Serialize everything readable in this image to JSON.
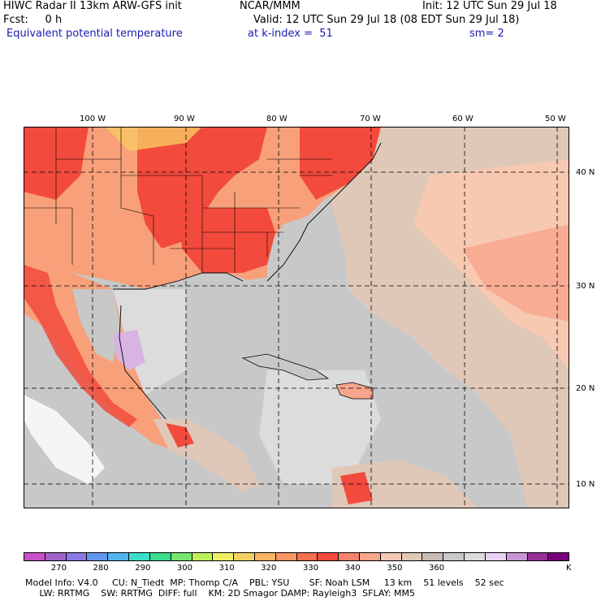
{
  "header": {
    "line1_left": "HIWC Radar II 13km ARW-GFS init",
    "line1_mid": "NCAR/MMM",
    "line1_right": "Init: 12 UTC Sun 29 Jul 18",
    "line2_left": "Fcst:     0 h",
    "line2_right": "Valid: 12 UTC Sun 29 Jul 18 (08 EDT Sun 29 Jul 18)",
    "line3_left": "Equivalent potential temperature",
    "line3_mid": "at k-index =  51",
    "line3_right": "sm= 2"
  },
  "map": {
    "lon_labels": [
      "100 W",
      "90 W",
      "80 W",
      "70 W",
      "60 W",
      "50 W"
    ],
    "lat_labels": [
      "40 N",
      "30 N",
      "20 N",
      "10 N"
    ],
    "colors": {
      "warm_red": "#f24a3c",
      "orange": "#f7a07a",
      "light_salmon": "#f7c9b0",
      "tan": "#e0c9b8",
      "gray": "#c8c8c8",
      "light_gray": "#dcdcdc",
      "white": "#f5f5f5",
      "lavender": "#d8b4e2"
    }
  },
  "colorbar": {
    "colors": [
      "#c850c8",
      "#a064c8",
      "#8c78e6",
      "#6496f0",
      "#50b4f0",
      "#3cdcc8",
      "#3cdc8c",
      "#78e66e",
      "#bef05a",
      "#f0f064",
      "#f0d264",
      "#f7b464",
      "#f79664",
      "#f46e50",
      "#f24a3c",
      "#f5826e",
      "#f7a58c",
      "#f4c8b4",
      "#e0c8b4",
      "#c8bcb4",
      "#c8c8c8",
      "#dcdcdc",
      "#e6d2f0",
      "#c896d2",
      "#963296",
      "#780078"
    ],
    "labels": [
      "270",
      "280",
      "290",
      "300",
      "310",
      "320",
      "330",
      "340",
      "350",
      "360",
      "K"
    ]
  },
  "footer": {
    "line1": "Model Info: V4.0     CU: N_Tiedt  MP: Thomp C/A    PBL: YSU       SF: Noah LSM     13 km    51 levels    52 sec",
    "line2": "     LW: RRTMG    SW: RRTMG  DIFF: full    KM: 2D Smagor DAMP: Rayleigh3  SFLAY: MM5"
  }
}
